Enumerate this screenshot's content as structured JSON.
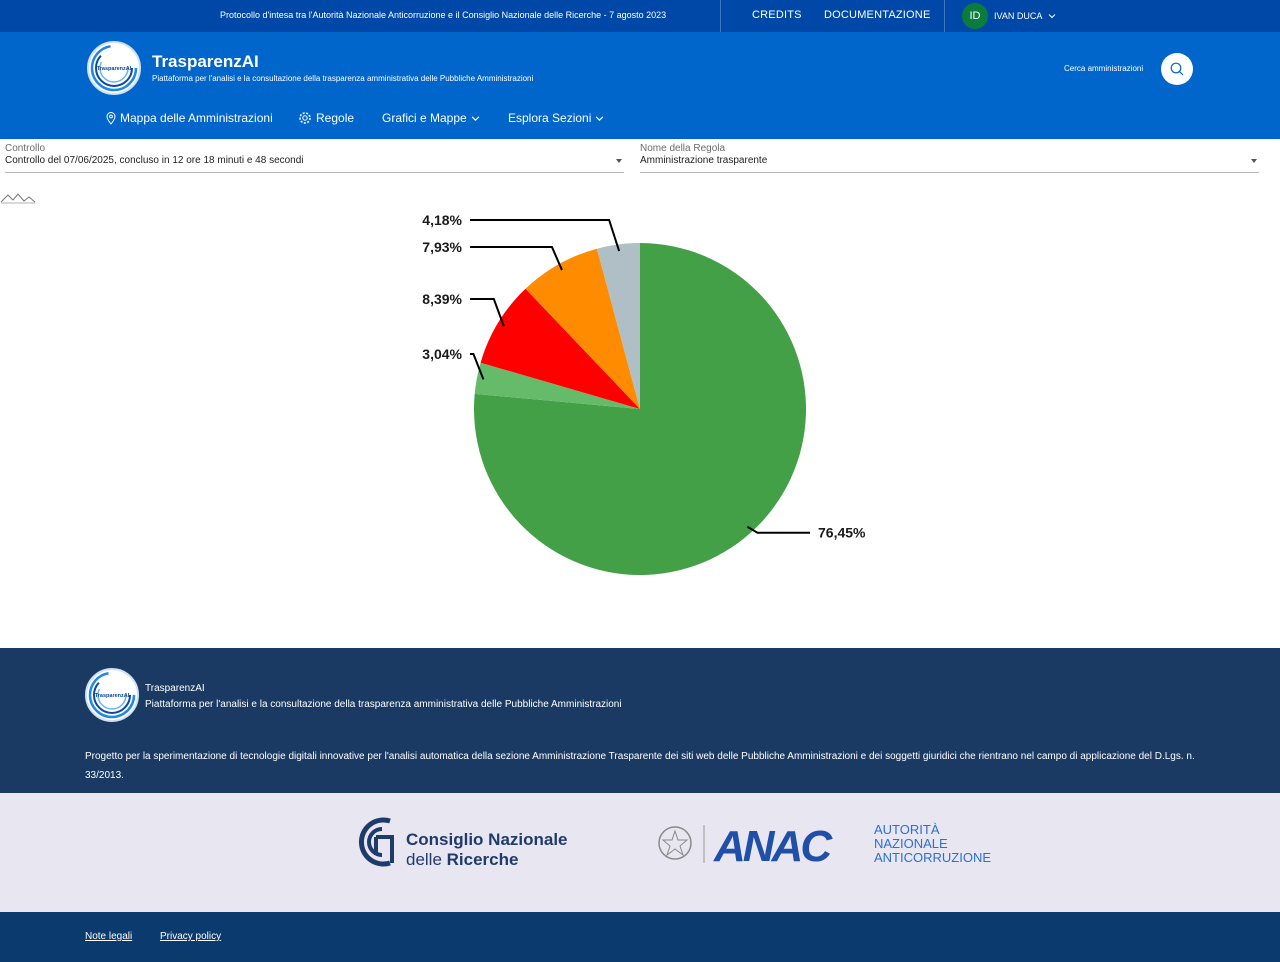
{
  "topbar": {
    "protocol": "Protocollo d'intesa tra l'Autorità Nazionale Anticorruzione e il Consiglio Nazionale delle Ricerche - 7 agosto 2023",
    "credits": "CREDITS",
    "docs": "DOCUMENTAZIONE",
    "user_initials": "ID",
    "user_name": "IVAN DUCA"
  },
  "header": {
    "logo_text": "TrasparenzAI",
    "title": "TrasparenzAI",
    "subtitle": "Piattaforma per l'analisi e la consultazione della trasparenza amministrativa delle Pubbliche Amministrazioni",
    "search_label": "Cerca amministrazioni"
  },
  "nav": {
    "map": "Mappa delle Amministrazioni",
    "rules": "Regole",
    "charts": "Grafici e Mappe",
    "sections": "Esplora Sezioni"
  },
  "filters": {
    "control_label": "Controllo",
    "control_value": "Controllo del 07/06/2025, concluso in 12 ore 18 minuti e 48 secondi",
    "rule_label": "Nome della Regola",
    "rule_value": "Amministrazione trasparente"
  },
  "chart_data": {
    "type": "pie",
    "values": [
      76.45,
      3.04,
      8.39,
      7.93,
      4.18
    ],
    "labels": [
      "76,45%",
      "3,04%",
      "8,39%",
      "7,93%",
      "4,18%"
    ],
    "colors": [
      "#43a047",
      "#66bb6a",
      "#ff0000",
      "#ff8c00",
      "#b0bec5"
    ]
  },
  "footer": {
    "logo_text": "TrasparenzAI",
    "title": "TrasparenzAI",
    "subtitle": "Piattaforma per l'analisi e la consultazione della trasparenza amministrativa delle Pubbliche Amministrazioni",
    "description": "Progetto per la sperimentazione di tecnologie digitali innovative per l'analisi automatica della sezione Amministrazione Trasparente dei siti web delle Pubbliche Amministrazioni e dei soggetti giuridici che rientrano nel campo di applicazione del D.Lgs. n. 33/2013."
  },
  "partners": {
    "cnr_line1": "Consiglio Nazionale",
    "cnr_line2a": "delle ",
    "cnr_line2b": "Ricerche",
    "anac_logo": "ANAC",
    "anac_line1": "AUTORITÀ",
    "anac_line2": "NAZIONALE",
    "anac_line3": "ANTICORRUZIONE"
  },
  "bottom": {
    "legal": "Note legali",
    "privacy": "Privacy policy"
  }
}
